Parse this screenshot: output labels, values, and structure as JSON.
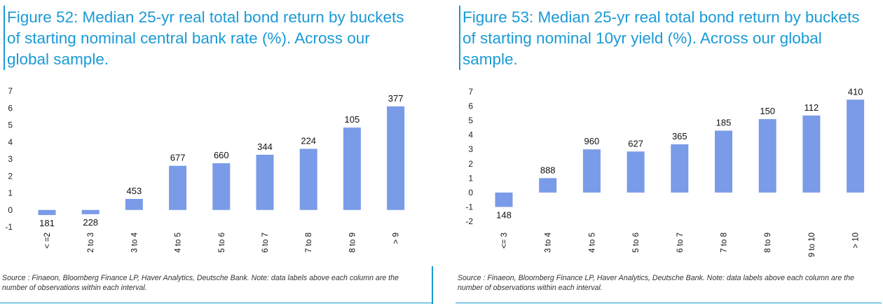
{
  "chart_data": [
    {
      "type": "bar",
      "title": "Figure 52: Median 25-yr real total bond return by buckets\nof starting nominal central bank rate (%). Across our\nglobal sample.",
      "categories": [
        "< =2",
        "2 to 3",
        "3 to 4",
        "4 to 5",
        "5 to 6",
        "6 to 7",
        "7 to 8",
        "8 to 9",
        "> 9"
      ],
      "values": [
        -0.3,
        -0.25,
        0.65,
        2.6,
        2.75,
        3.25,
        3.6,
        4.85,
        6.1
      ],
      "data_labels": [
        "181",
        "228",
        "453",
        "677",
        "660",
        "344",
        "224",
        "105",
        "377"
      ],
      "yticks": [
        "7",
        "6",
        "5",
        "4",
        "3",
        "2",
        "1",
        "0",
        "-1"
      ],
      "ylim": [
        -1,
        7
      ],
      "xlabel": "",
      "ylabel": "",
      "color": "#7a9be8",
      "source": "Source : Finaeon, Bloomberg Finance LP, Haver Analytics, Deutsche Bank. Note: data labels above each column are the number of observations within each interval."
    },
    {
      "type": "bar",
      "title": "Figure 53: Median 25-yr real total bond return by buckets\nof starting nominal 10yr yield (%). Across our global\nsample.",
      "categories": [
        "<= 3",
        "3 to 4",
        "4 to 5",
        "5 to 6",
        "6 to 7",
        "7 to 8",
        "8 to 9",
        "9 to 10",
        "> 10"
      ],
      "values": [
        -1.0,
        1.0,
        3.0,
        2.85,
        3.35,
        4.3,
        5.1,
        5.35,
        6.45
      ],
      "data_labels": [
        "148",
        "888",
        "960",
        "627",
        "365",
        "185",
        "150",
        "112",
        "410"
      ],
      "yticks": [
        "7",
        "6",
        "5",
        "4",
        "3",
        "2",
        "1",
        "0",
        "-1",
        "-2"
      ],
      "ylim": [
        -2,
        7
      ],
      "xlabel": "",
      "ylabel": "",
      "color": "#7a9be8",
      "source": "Source : Finaeon, Bloomberg Finance LP, Haver Analytics, Deutsche Bank. Note: data labels above each column are the number of observations within each interval."
    }
  ]
}
